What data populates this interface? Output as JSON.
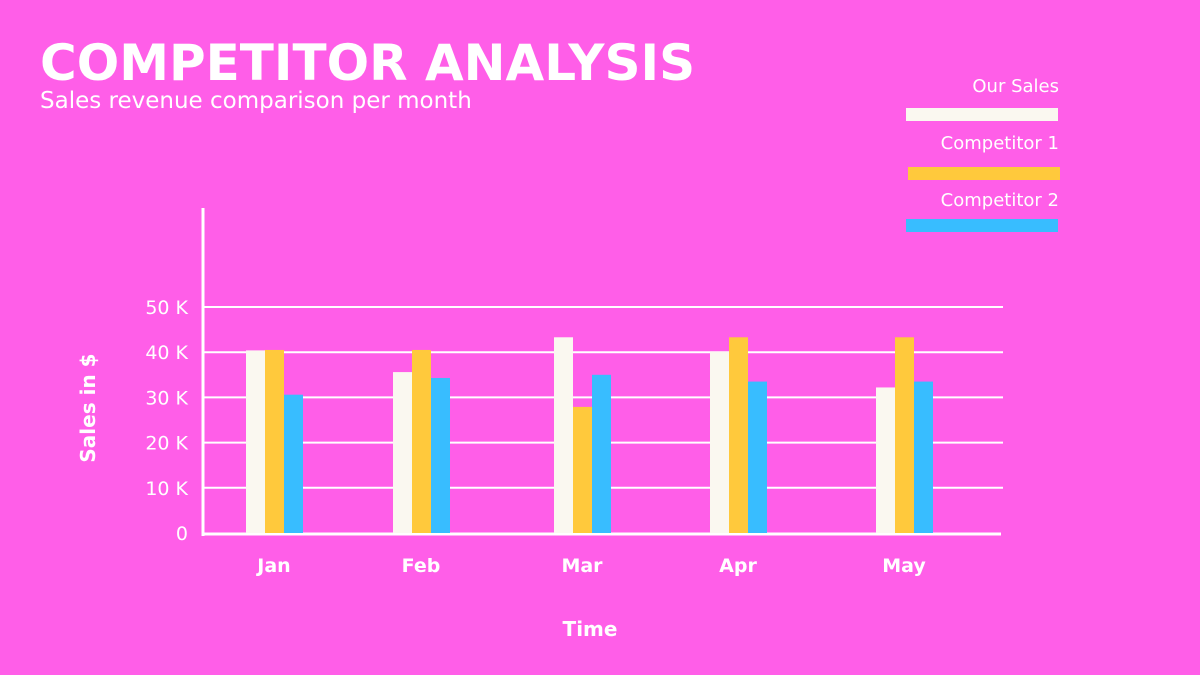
{
  "chart_data": {
    "type": "bar",
    "title": "COMPETITOR ANALYSIS",
    "subtitle": "Sales revenue comparison per month",
    "xlabel": "Time",
    "ylabel": "Sales in $",
    "categories": [
      "Jan",
      "Feb",
      "Mar",
      "Apr",
      "May"
    ],
    "yticks": [
      "0",
      "10 K",
      "20 K",
      "30 K",
      "40 K",
      "50 K"
    ],
    "ylim": [
      0,
      50000
    ],
    "grid": true,
    "legend_placement": "top-right",
    "series": [
      {
        "name": "Our Sales",
        "color": "#FAF8F0",
        "values": [
          40400,
          35600,
          43300,
          40100,
          32200
        ]
      },
      {
        "name": "Competitor 1",
        "color": "#FFC93C",
        "values": [
          40500,
          40500,
          27900,
          43300,
          43300
        ]
      },
      {
        "name": "Competitor 2",
        "color": "#38BDFF",
        "values": [
          30600,
          34300,
          35000,
          33500,
          33500
        ]
      }
    ]
  }
}
